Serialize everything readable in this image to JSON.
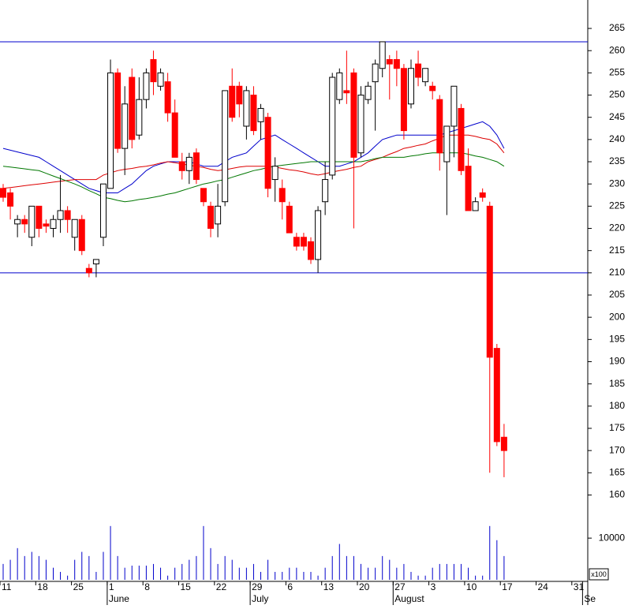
{
  "chart_data": {
    "type": "candlestick",
    "ylim": [
      156,
      271.4
    ],
    "yticks": [
      160,
      165,
      170,
      175,
      180,
      185,
      190,
      195,
      200,
      205,
      210,
      215,
      220,
      225,
      230,
      235,
      240,
      245,
      250,
      255,
      260,
      265
    ],
    "up_color": "#ffffff",
    "down_color": "#ff0000",
    "open": [
      229,
      228,
      221,
      222,
      218,
      225,
      221,
      220,
      222,
      224,
      218,
      222,
      211,
      212,
      218,
      229,
      255,
      238,
      254,
      241,
      249,
      258,
      252,
      253,
      246,
      235,
      233,
      237,
      229,
      225,
      221,
      226,
      252,
      252,
      243,
      250,
      244,
      245,
      231,
      229,
      225,
      218,
      218,
      217,
      213,
      226,
      232,
      249,
      251,
      255,
      237,
      249,
      253,
      256,
      258,
      258,
      256,
      248,
      257,
      253,
      252,
      249,
      235,
      243,
      247,
      234,
      224,
      228,
      225,
      193,
      173
    ],
    "high": [
      230,
      229,
      223,
      223,
      225,
      225,
      222,
      223,
      232,
      225,
      222,
      223,
      212,
      213,
      230,
      258,
      256,
      252,
      256,
      254,
      256,
      260,
      256,
      255,
      249,
      237,
      237,
      238,
      229,
      226,
      230,
      251,
      256,
      253,
      252,
      252,
      248,
      246,
      236,
      231,
      226,
      219,
      219,
      218,
      225,
      235,
      255,
      256,
      260,
      256,
      252,
      253,
      258,
      262,
      259,
      260,
      257,
      258,
      260,
      256,
      253,
      250,
      243,
      252,
      248,
      238,
      227,
      229,
      226,
      194,
      176
    ],
    "low": [
      226,
      222,
      218,
      219,
      216,
      218,
      219,
      218,
      219,
      219,
      215,
      214,
      209,
      209,
      216,
      229,
      237,
      232,
      238,
      240,
      247,
      250,
      251,
      244,
      236,
      231,
      230,
      230,
      225,
      218,
      218,
      225,
      244,
      245,
      240,
      241,
      240,
      227,
      226,
      222,
      219,
      215,
      215,
      212,
      210,
      223,
      231,
      248,
      248,
      220,
      236,
      248,
      242,
      254,
      249,
      252,
      240,
      247,
      252,
      252,
      249,
      233,
      223,
      236,
      232,
      224,
      224,
      226,
      165,
      171,
      164
    ],
    "close": [
      227,
      225,
      222,
      221,
      225,
      220,
      220.5,
      222,
      224,
      222,
      222,
      215,
      210,
      213,
      230,
      255,
      238,
      248,
      240,
      249,
      255,
      253,
      255,
      246,
      236,
      233,
      236,
      231,
      226,
      220,
      225,
      251,
      245,
      248,
      251,
      242,
      247,
      229,
      234,
      226,
      219,
      216,
      216,
      213,
      224,
      231,
      254,
      255,
      250.5,
      236,
      250,
      252,
      257,
      262,
      257,
      256,
      242,
      256,
      254,
      256,
      251,
      237,
      243,
      252,
      233,
      224,
      226,
      227,
      191,
      172,
      170
    ],
    "moving_averages": [
      {
        "color": "#0000cc",
        "values": [
          238,
          237.6,
          237.2,
          236.8,
          236.4,
          236,
          235,
          234,
          233,
          232,
          231,
          230,
          229,
          228.5,
          228,
          228,
          228,
          229,
          230,
          231.5,
          233,
          234,
          234.5,
          235,
          235,
          235,
          235,
          234.5,
          234,
          234,
          234,
          235,
          236,
          236.5,
          237,
          238.5,
          240,
          240.5,
          241,
          240,
          239,
          238,
          237,
          236,
          235,
          234,
          234,
          234,
          234.5,
          235,
          236,
          237,
          238.5,
          240,
          240.5,
          241,
          241,
          241,
          241,
          241,
          241,
          241,
          241.5,
          242,
          242.5,
          243,
          243.5,
          244,
          243,
          241,
          238
        ]
      },
      {
        "color": "#dd0000",
        "values": [
          229,
          229.2,
          229.4,
          229.6,
          229.8,
          230,
          230.2,
          230.4,
          230.6,
          230.8,
          231,
          231,
          231,
          231,
          232,
          232.5,
          233,
          233.3,
          233.5,
          233.8,
          234,
          234.3,
          234.7,
          235,
          234.8,
          234.5,
          234.2,
          234,
          233.7,
          233.3,
          233,
          233.2,
          233.5,
          233.8,
          234,
          234,
          234,
          234,
          233.8,
          233.5,
          233.2,
          233,
          232.7,
          232.3,
          232,
          232.3,
          232.7,
          233,
          233.3,
          233.7,
          234,
          235,
          235.5,
          236,
          236.7,
          237.3,
          238,
          238.3,
          238.7,
          239,
          239.7,
          240.3,
          241,
          241,
          241,
          241,
          240.7,
          240.3,
          240,
          239,
          237
        ]
      },
      {
        "color": "#007700",
        "values": [
          234,
          233.8,
          233.6,
          233.4,
          233.2,
          233,
          232.4,
          231.8,
          231.2,
          230.6,
          230,
          229.3,
          228.5,
          227.8,
          227,
          226.7,
          226.3,
          226,
          226.2,
          226.5,
          226.7,
          227,
          227.3,
          227.7,
          228,
          228.5,
          229,
          229.5,
          230,
          230.3,
          230.7,
          231,
          231.5,
          232,
          232.5,
          233,
          233.3,
          233.7,
          234,
          234.2,
          234.4,
          234.6,
          234.8,
          235,
          235,
          235,
          235,
          235,
          235,
          235,
          235,
          235.3,
          235.7,
          236,
          236,
          236,
          236,
          236.3,
          236.5,
          236.8,
          237,
          237,
          237,
          237,
          237,
          236.7,
          236.3,
          236,
          235.5,
          235,
          234
        ]
      }
    ],
    "hlines": {
      "color": "#0000cc",
      "values": [
        262,
        210
      ]
    },
    "volume": {
      "color": "#0000cc",
      "ylim": [
        0,
        14000
      ],
      "yticks": [
        10000
      ],
      "unit_label": "x100",
      "values": [
        3800,
        4800,
        7600,
        5700,
        6700,
        5700,
        4800,
        2900,
        1900,
        1000,
        4800,
        6700,
        5700,
        1900,
        6700,
        12900,
        5700,
        2900,
        3400,
        3400,
        3400,
        3800,
        2900,
        1000,
        2900,
        3800,
        4800,
        5700,
        12900,
        7600,
        3800,
        5700,
        4800,
        2900,
        2900,
        3800,
        1900,
        4800,
        1900,
        1900,
        2900,
        2900,
        1900,
        1900,
        1000,
        2900,
        5700,
        8600,
        5700,
        5700,
        3800,
        2900,
        2900,
        5700,
        4800,
        2900,
        3800,
        1900,
        1000,
        1000,
        2900,
        3800,
        3800,
        3800,
        3800,
        2900,
        1000,
        1000,
        12900,
        9500,
        5700
      ]
    },
    "x_tick_labels": [
      "11",
      "18",
      "25",
      "1",
      "8",
      "15",
      "22",
      "29",
      "6",
      "13",
      "20",
      "27",
      "3",
      "10",
      "17",
      "24",
      "31"
    ],
    "month_labels": [
      "June",
      "July",
      "August",
      "Se"
    ]
  }
}
